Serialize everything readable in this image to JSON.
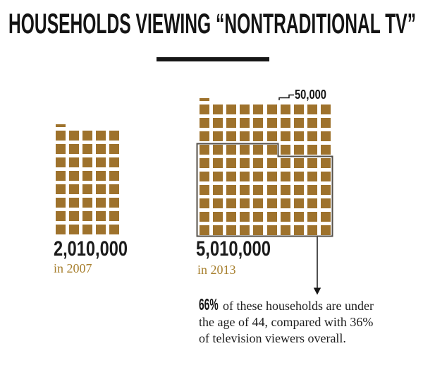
{
  "header": {
    "title": "HOUSEHOLDS VIEWING “NONTRADITIONAL TV”"
  },
  "colors": {
    "square": "#9e722c",
    "year_text": "#a8802f",
    "outline": "#55504a",
    "ink": "#161616"
  },
  "chart_data": {
    "type": "waffle",
    "title": "HOUSEHOLDS VIEWING “NONTRADITIONAL TV”",
    "unit_value_per_square": 50000,
    "unit_label": "50,000",
    "legend_position": "top-right of 2013 grid",
    "series": [
      {
        "year": "2007",
        "value": 2010000,
        "value_label": "2,010,000",
        "caption": "in 2007",
        "columns": 5,
        "rows": 8,
        "full_squares": 40,
        "partial_square_fraction": 0.2
      },
      {
        "year": "2013",
        "value": 5010000,
        "value_label": "5,010,000",
        "caption": "in 2013",
        "columns": 10,
        "rows": 10,
        "full_squares": 100,
        "partial_square_fraction": 0.2
      }
    ],
    "highlight": {
      "series": "2013",
      "fraction": 0.66,
      "squares_outlined": 66,
      "annotation_lead": "66%",
      "annotation_lines": [
        "of these households are under",
        "the age of 44, compared with 36%",
        "of television viewers overall."
      ]
    }
  }
}
